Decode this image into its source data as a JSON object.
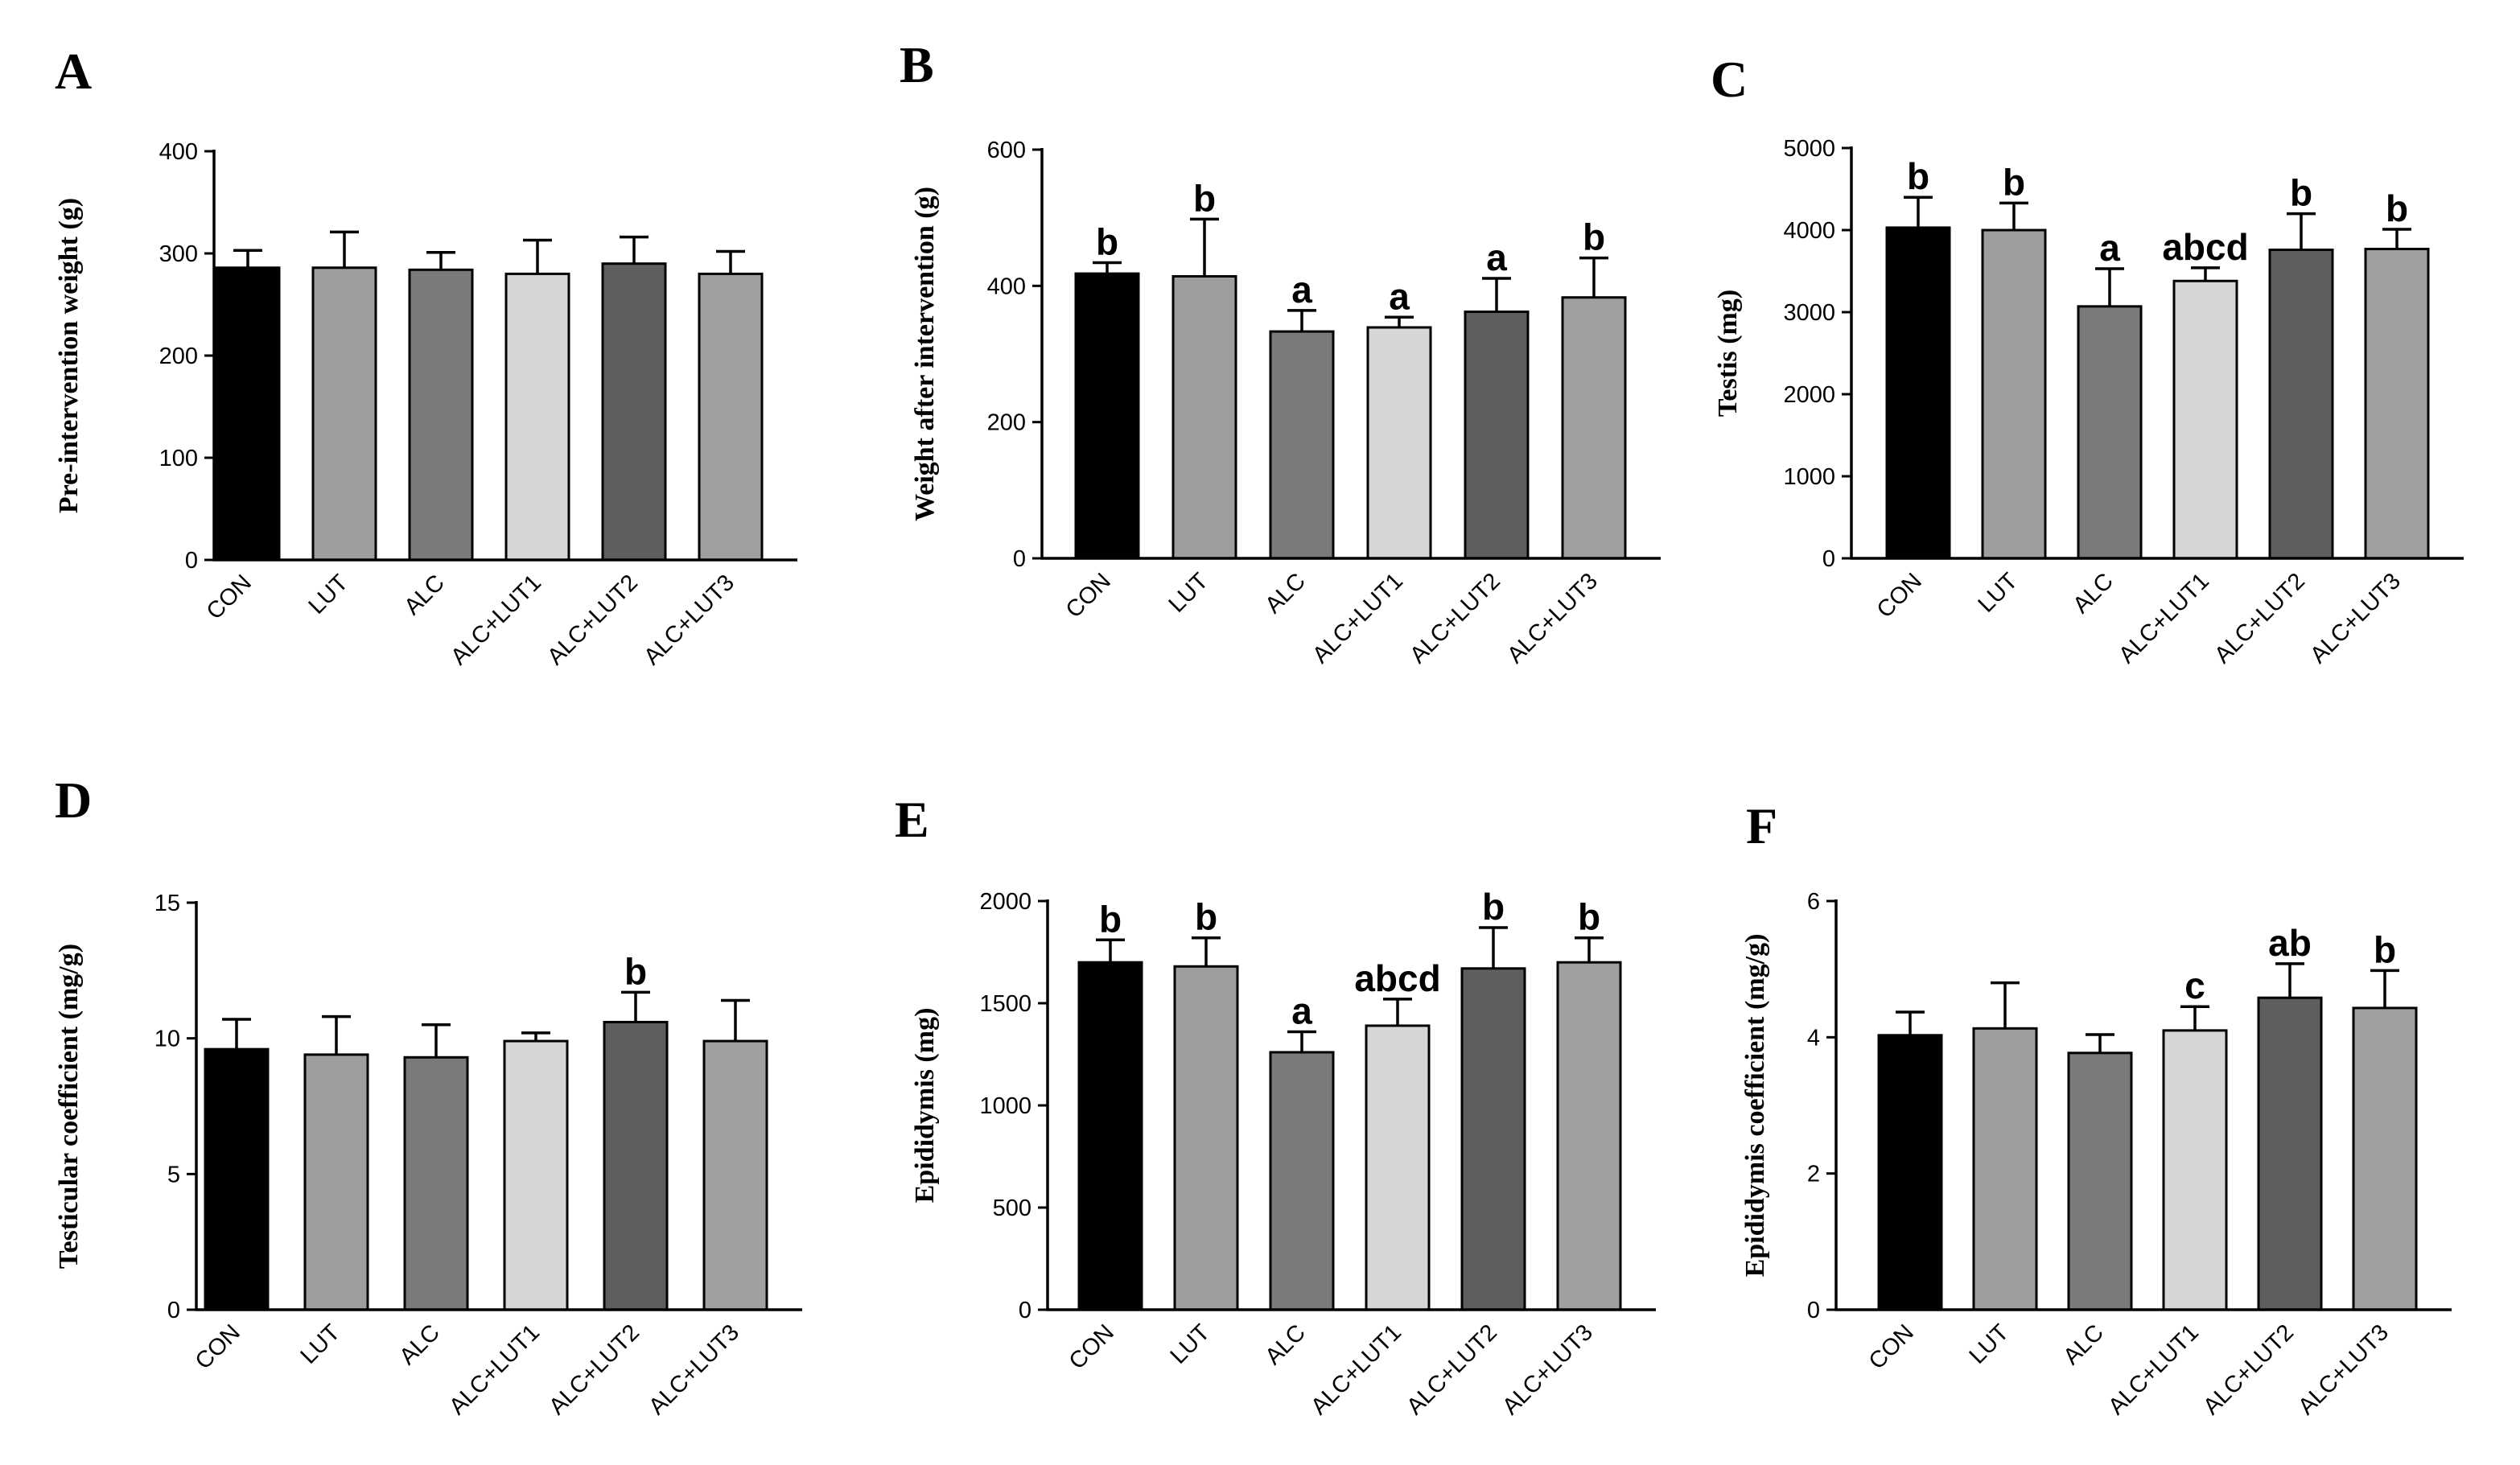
{
  "figure": {
    "categories": [
      "CON",
      "LUT",
      "ALC",
      "ALC+LUT1",
      "ALC+LUT2",
      "ALC+LUT3"
    ],
    "bar_colors": [
      "#000000",
      "#9e9ea1",
      "#7a7a7a",
      "#d6d6d6",
      "#5e5e5e",
      "#a0a0a3"
    ]
  },
  "chart_data": [
    {
      "panel": "A",
      "type": "bar",
      "ylabel": "Pre-intervention weight (g)",
      "ylim": [
        0,
        400
      ],
      "yticks": [
        "0",
        "100",
        "200",
        "300",
        "400"
      ],
      "categories": [
        "CON",
        "LUT",
        "ALC",
        "ALC+LUT1",
        "ALC+LUT2",
        "ALC+LUT3"
      ],
      "values": [
        286,
        286,
        284,
        280,
        290,
        280
      ],
      "errors": [
        17,
        35,
        17,
        33,
        26,
        22
      ],
      "significance": [
        "",
        "",
        "",
        "",
        "",
        ""
      ]
    },
    {
      "panel": "B",
      "type": "bar",
      "ylabel": "Weight after intervention (g)",
      "ylim": [
        0,
        600
      ],
      "yticks": [
        "0",
        "200",
        "400",
        "600"
      ],
      "categories": [
        "CON",
        "LUT",
        "ALC",
        "ALC+LUT1",
        "ALC+LUT2",
        "ALC+LUT3"
      ],
      "values": [
        418,
        414,
        333,
        339,
        362,
        383
      ],
      "errors": [
        16,
        84,
        31,
        15,
        49,
        58
      ],
      "significance": [
        "b",
        "b",
        "a",
        "a",
        "a",
        "b"
      ]
    },
    {
      "panel": "C",
      "type": "bar",
      "ylabel": "Testis (mg)",
      "ylim": [
        0,
        5000
      ],
      "yticks": [
        "0",
        "1000",
        "2000",
        "3000",
        "4000",
        "5000"
      ],
      "categories": [
        "CON",
        "LUT",
        "ALC",
        "ALC+LUT1",
        "ALC+LUT2",
        "ALC+LUT3"
      ],
      "values": [
        4030,
        4000,
        3070,
        3380,
        3760,
        3770
      ],
      "errors": [
        370,
        330,
        460,
        160,
        440,
        240
      ],
      "significance": [
        "b",
        "b",
        "a",
        "abcd",
        "b",
        "b"
      ]
    },
    {
      "panel": "D",
      "type": "bar",
      "ylabel": "Testicular coefficient (mg/g)",
      "ylim": [
        0,
        15
      ],
      "yticks": [
        "0",
        "5",
        "10",
        "15"
      ],
      "categories": [
        "CON",
        "LUT",
        "ALC",
        "ALC+LUT1",
        "ALC+LUT2",
        "ALC+LUT3"
      ],
      "values": [
        9.6,
        9.4,
        9.3,
        9.9,
        10.6,
        9.9
      ],
      "errors": [
        1.1,
        1.4,
        1.2,
        0.3,
        1.1,
        1.5
      ],
      "significance": [
        "",
        "",
        "",
        "",
        "b",
        ""
      ]
    },
    {
      "panel": "E",
      "type": "bar",
      "ylabel": "Epididymis (mg)",
      "ylim": [
        0,
        2000
      ],
      "yticks": [
        "0",
        "500",
        "1000",
        "1500",
        "2000"
      ],
      "categories": [
        "CON",
        "LUT",
        "ALC",
        "ALC+LUT1",
        "ALC+LUT2",
        "ALC+LUT3"
      ],
      "values": [
        1700,
        1680,
        1260,
        1390,
        1670,
        1700
      ],
      "errors": [
        110,
        140,
        100,
        130,
        200,
        120
      ],
      "significance": [
        "b",
        "b",
        "a",
        "abcd",
        "b",
        "b"
      ]
    },
    {
      "panel": "F",
      "type": "bar",
      "ylabel": "Epididymis coefficient (mg/g)",
      "ylim": [
        0,
        6
      ],
      "yticks": [
        "0",
        "2",
        "4",
        "6"
      ],
      "categories": [
        "CON",
        "LUT",
        "ALC",
        "ALC+LUT1",
        "ALC+LUT2",
        "ALC+LUT3"
      ],
      "values": [
        4.03,
        4.13,
        3.77,
        4.1,
        4.58,
        4.43
      ],
      "errors": [
        0.34,
        0.67,
        0.27,
        0.35,
        0.5,
        0.55
      ],
      "significance": [
        "",
        "",
        "",
        "c",
        "ab",
        "b"
      ]
    }
  ]
}
